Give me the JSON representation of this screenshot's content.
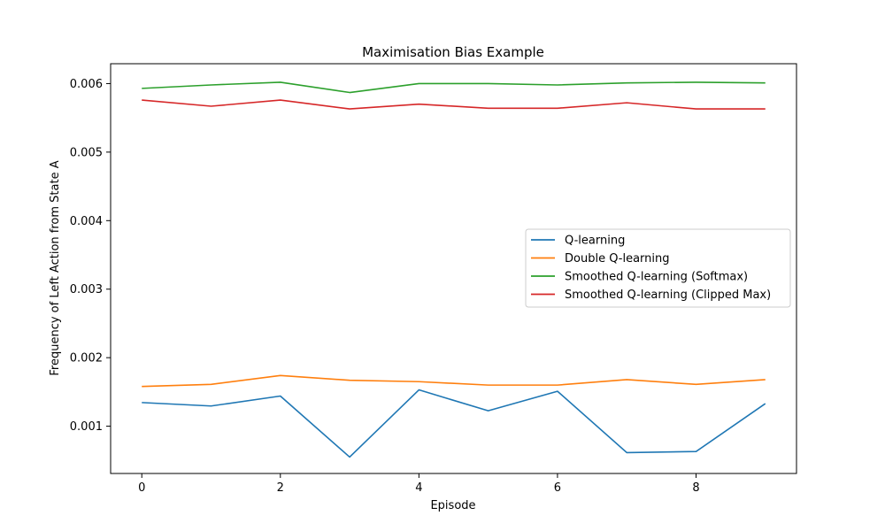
{
  "chart_data": {
    "type": "line",
    "title": "Maximisation Bias Example",
    "xlabel": "Episode",
    "ylabel": "Frequency of Left Action from State A",
    "x": [
      0,
      1,
      2,
      3,
      4,
      5,
      6,
      7,
      8,
      9
    ],
    "xlim": [
      -0.45,
      9.45
    ],
    "ylim": [
      0.00031,
      0.00629
    ],
    "xticks": [
      0,
      2,
      4,
      6,
      8
    ],
    "xtick_labels": [
      "0",
      "2",
      "4",
      "6",
      "8"
    ],
    "yticks": [
      0.001,
      0.002,
      0.003,
      0.004,
      0.005,
      0.006
    ],
    "ytick_labels": [
      "0.001",
      "0.002",
      "0.003",
      "0.004",
      "0.005",
      "0.006"
    ],
    "grid": false,
    "legend_position": "center-right",
    "series": [
      {
        "name": "Q-learning",
        "color": "#1f77b4",
        "values": [
          0.001345,
          0.001295,
          0.00144,
          0.00055,
          0.00153,
          0.001225,
          0.00151,
          0.000615,
          0.00063,
          0.00133
        ]
      },
      {
        "name": "Double Q-learning",
        "color": "#ff7f0e",
        "values": [
          0.00158,
          0.00161,
          0.00174,
          0.00167,
          0.00165,
          0.0016,
          0.0016,
          0.00168,
          0.00161,
          0.00168
        ]
      },
      {
        "name": "Smoothed Q-learning (Softmax)",
        "color": "#2ca02c",
        "values": [
          0.00593,
          0.00598,
          0.00602,
          0.00587,
          0.006,
          0.006,
          0.00598,
          0.00601,
          0.00602,
          0.00601
        ]
      },
      {
        "name": "Smoothed Q-learning (Clipped Max)",
        "color": "#d62728",
        "values": [
          0.00576,
          0.00567,
          0.00576,
          0.00563,
          0.0057,
          0.00564,
          0.00564,
          0.00572,
          0.00563,
          0.00563
        ]
      }
    ]
  }
}
